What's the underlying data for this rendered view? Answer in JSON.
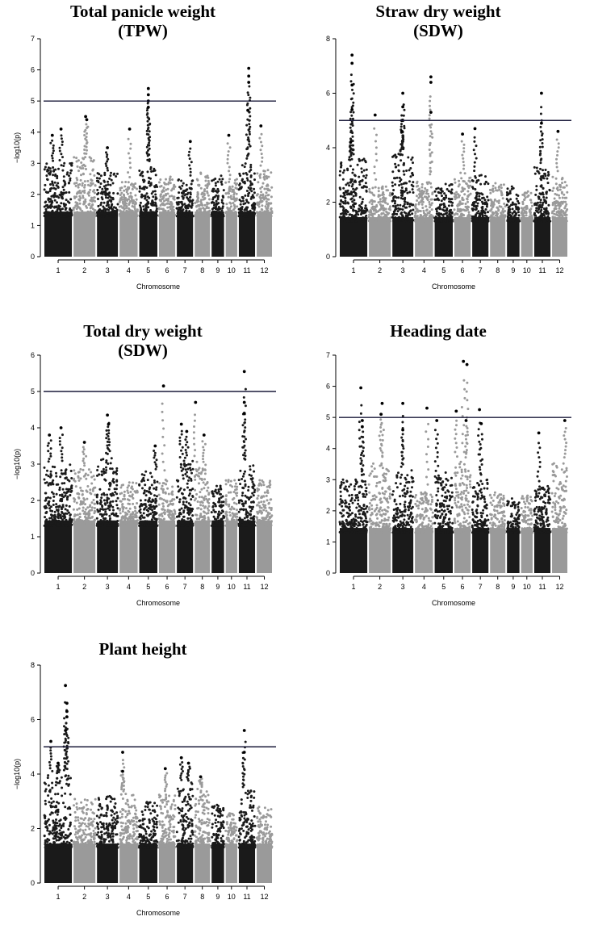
{
  "figure": {
    "chart_data": [
      {
        "type": "scatter",
        "subtype": "manhattan",
        "title_line1": "Total panicle weight",
        "title_line2": "(TPW)",
        "xlabel": "Chromosome",
        "ylabel": "−log10(p)",
        "ylim": [
          0,
          7
        ],
        "yticks": [
          0,
          1,
          2,
          3,
          4,
          5,
          6,
          7
        ],
        "threshold": 5,
        "chromosomes": [
          "1",
          "2",
          "3",
          "4",
          "5",
          "6",
          "7",
          "8",
          "9",
          "10",
          "11",
          "12"
        ],
        "base_levels": [
          3.0,
          3.2,
          2.7,
          2.4,
          2.9,
          2.6,
          2.5,
          2.7,
          2.6,
          2.5,
          3.0,
          2.8
        ],
        "peaks": [
          {
            "chr": "1",
            "pos": 0.6,
            "value": 4.1
          },
          {
            "chr": "1",
            "pos": 0.3,
            "value": 3.9
          },
          {
            "chr": "2",
            "pos": 0.55,
            "value": 4.5
          },
          {
            "chr": "2",
            "pos": 0.6,
            "value": 4.4
          },
          {
            "chr": "3",
            "pos": 0.5,
            "value": 3.5
          },
          {
            "chr": "4",
            "pos": 0.55,
            "value": 4.1
          },
          {
            "chr": "5",
            "pos": 0.5,
            "value": 5.4
          },
          {
            "chr": "5",
            "pos": 0.5,
            "value": 5.2
          },
          {
            "chr": "5",
            "pos": 0.5,
            "value": 5.0
          },
          {
            "chr": "5",
            "pos": 0.5,
            "value": 4.8
          },
          {
            "chr": "7",
            "pos": 0.8,
            "value": 3.7
          },
          {
            "chr": "10",
            "pos": 0.3,
            "value": 3.9
          },
          {
            "chr": "11",
            "pos": 0.6,
            "value": 6.05
          },
          {
            "chr": "11",
            "pos": 0.6,
            "value": 5.8
          },
          {
            "chr": "11",
            "pos": 0.6,
            "value": 5.6
          },
          {
            "chr": "11",
            "pos": 0.55,
            "value": 4.7
          },
          {
            "chr": "12",
            "pos": 0.3,
            "value": 4.2
          }
        ]
      },
      {
        "type": "scatter",
        "subtype": "manhattan",
        "title_line1": "Straw dry weight",
        "title_line2": "(SDW)",
        "xlabel": "Chromosome",
        "ylabel": "",
        "ylim": [
          0,
          8
        ],
        "yticks": [
          0,
          2,
          4,
          6,
          8
        ],
        "threshold": 5,
        "chromosomes": [
          "1",
          "2",
          "3",
          "4",
          "5",
          "6",
          "7",
          "8",
          "9",
          "10",
          "11",
          "12"
        ],
        "base_levels": [
          3.6,
          2.6,
          3.8,
          2.8,
          2.7,
          3.1,
          3.0,
          2.7,
          2.6,
          2.4,
          3.3,
          3.0
        ],
        "peaks": [
          {
            "chr": "1",
            "pos": 0.45,
            "value": 7.4
          },
          {
            "chr": "1",
            "pos": 0.45,
            "value": 7.1
          },
          {
            "chr": "1",
            "pos": 0.45,
            "value": 6.3
          },
          {
            "chr": "1",
            "pos": 0.45,
            "value": 5.4
          },
          {
            "chr": "1",
            "pos": 0.4,
            "value": 4.2
          },
          {
            "chr": "2",
            "pos": 0.3,
            "value": 5.2
          },
          {
            "chr": "3",
            "pos": 0.5,
            "value": 6.0
          },
          {
            "chr": "3",
            "pos": 0.5,
            "value": 5.5
          },
          {
            "chr": "3",
            "pos": 0.45,
            "value": 5.0
          },
          {
            "chr": "3",
            "pos": 0.45,
            "value": 4.6
          },
          {
            "chr": "4",
            "pos": 0.85,
            "value": 6.6
          },
          {
            "chr": "4",
            "pos": 0.85,
            "value": 6.4
          },
          {
            "chr": "4",
            "pos": 0.85,
            "value": 5.3
          },
          {
            "chr": "6",
            "pos": 0.5,
            "value": 4.5
          },
          {
            "chr": "7",
            "pos": 0.2,
            "value": 4.7
          },
          {
            "chr": "11",
            "pos": 0.45,
            "value": 6.0
          },
          {
            "chr": "11",
            "pos": 0.45,
            "value": 4.9
          },
          {
            "chr": "12",
            "pos": 0.4,
            "value": 4.6
          }
        ]
      },
      {
        "type": "scatter",
        "subtype": "manhattan",
        "title_line1": "Total dry weight",
        "title_line2": "(SDW)",
        "xlabel": "Chromosome",
        "ylabel": "−log10(p)",
        "ylim": [
          0,
          6
        ],
        "yticks": [
          0,
          1,
          2,
          3,
          4,
          5,
          6
        ],
        "threshold": 5,
        "chromosomes": [
          "1",
          "2",
          "3",
          "4",
          "5",
          "6",
          "7",
          "8",
          "9",
          "10",
          "11",
          "12"
        ],
        "base_levels": [
          3.0,
          2.9,
          3.2,
          2.5,
          2.8,
          2.6,
          3.1,
          2.9,
          2.4,
          2.6,
          3.0,
          2.6
        ],
        "peaks": [
          {
            "chr": "1",
            "pos": 0.2,
            "value": 3.8
          },
          {
            "chr": "1",
            "pos": 0.6,
            "value": 4.0
          },
          {
            "chr": "2",
            "pos": 0.5,
            "value": 3.6
          },
          {
            "chr": "3",
            "pos": 0.5,
            "value": 4.35
          },
          {
            "chr": "3",
            "pos": 0.55,
            "value": 4.1
          },
          {
            "chr": "5",
            "pos": 0.85,
            "value": 3.5
          },
          {
            "chr": "6",
            "pos": 0.3,
            "value": 5.15
          },
          {
            "chr": "7",
            "pos": 0.3,
            "value": 4.1
          },
          {
            "chr": "7",
            "pos": 0.6,
            "value": 3.9
          },
          {
            "chr": "8",
            "pos": 0.1,
            "value": 4.7
          },
          {
            "chr": "8",
            "pos": 0.6,
            "value": 3.8
          },
          {
            "chr": "11",
            "pos": 0.35,
            "value": 5.55
          },
          {
            "chr": "11",
            "pos": 0.35,
            "value": 4.7
          },
          {
            "chr": "11",
            "pos": 0.35,
            "value": 4.4
          }
        ]
      },
      {
        "type": "scatter",
        "subtype": "manhattan",
        "title_line1": "Heading date",
        "title_line2": "",
        "xlabel": "Chromosome",
        "ylabel": "",
        "ylim": [
          0,
          7
        ],
        "yticks": [
          0,
          1,
          2,
          3,
          4,
          5,
          6,
          7
        ],
        "threshold": 5,
        "chromosomes": [
          "1",
          "2",
          "3",
          "4",
          "5",
          "6",
          "7",
          "8",
          "9",
          "10",
          "11",
          "12"
        ],
        "base_levels": [
          3.0,
          3.6,
          3.3,
          2.6,
          3.3,
          3.6,
          3.0,
          2.6,
          2.4,
          2.5,
          2.8,
          3.6
        ],
        "peaks": [
          {
            "chr": "1",
            "pos": 0.75,
            "value": 5.95
          },
          {
            "chr": "1",
            "pos": 0.8,
            "value": 4.9
          },
          {
            "chr": "1",
            "pos": 0.8,
            "value": 4.7
          },
          {
            "chr": "2",
            "pos": 0.6,
            "value": 5.45
          },
          {
            "chr": "2",
            "pos": 0.55,
            "value": 5.1
          },
          {
            "chr": "3",
            "pos": 0.5,
            "value": 5.45
          },
          {
            "chr": "3",
            "pos": 0.5,
            "value": 4.6
          },
          {
            "chr": "4",
            "pos": 0.65,
            "value": 5.3
          },
          {
            "chr": "5",
            "pos": 0.15,
            "value": 4.9
          },
          {
            "chr": "6",
            "pos": 0.15,
            "value": 5.2
          },
          {
            "chr": "6",
            "pos": 0.55,
            "value": 6.8
          },
          {
            "chr": "6",
            "pos": 0.75,
            "value": 6.7
          },
          {
            "chr": "6",
            "pos": 0.7,
            "value": 4.9
          },
          {
            "chr": "7",
            "pos": 0.45,
            "value": 5.25
          },
          {
            "chr": "7",
            "pos": 0.55,
            "value": 4.8
          },
          {
            "chr": "11",
            "pos": 0.3,
            "value": 4.5
          },
          {
            "chr": "12",
            "pos": 0.8,
            "value": 4.9
          }
        ]
      },
      {
        "type": "scatter",
        "subtype": "manhattan",
        "title_line1": "Plant height",
        "title_line2": "",
        "xlabel": "Chromosome",
        "ylabel": "−log10(p)",
        "ylim": [
          0,
          8
        ],
        "yticks": [
          0,
          2,
          4,
          6,
          8
        ],
        "threshold": 5,
        "chromosomes": [
          "1",
          "2",
          "3",
          "4",
          "5",
          "6",
          "7",
          "8",
          "9",
          "10",
          "11",
          "12"
        ],
        "base_levels": [
          4.0,
          3.1,
          3.2,
          3.3,
          3.0,
          3.3,
          3.7,
          3.5,
          2.9,
          2.6,
          3.4,
          2.8
        ],
        "peaks": [
          {
            "chr": "1",
            "pos": 0.75,
            "value": 7.25
          },
          {
            "chr": "1",
            "pos": 0.8,
            "value": 6.6
          },
          {
            "chr": "1",
            "pos": 0.8,
            "value": 6.3
          },
          {
            "chr": "1",
            "pos": 0.8,
            "value": 6.1
          },
          {
            "chr": "1",
            "pos": 0.75,
            "value": 5.6
          },
          {
            "chr": "1",
            "pos": 0.25,
            "value": 5.2
          },
          {
            "chr": "1",
            "pos": 0.5,
            "value": 4.4
          },
          {
            "chr": "4",
            "pos": 0.2,
            "value": 4.8
          },
          {
            "chr": "4",
            "pos": 0.2,
            "value": 4.1
          },
          {
            "chr": "6",
            "pos": 0.4,
            "value": 4.2
          },
          {
            "chr": "7",
            "pos": 0.3,
            "value": 4.6
          },
          {
            "chr": "7",
            "pos": 0.7,
            "value": 4.4
          },
          {
            "chr": "8",
            "pos": 0.4,
            "value": 3.9
          },
          {
            "chr": "11",
            "pos": 0.35,
            "value": 5.6
          },
          {
            "chr": "11",
            "pos": 0.35,
            "value": 4.8
          }
        ]
      }
    ],
    "colors": {
      "dark_chromosome": "#1a1a1a",
      "light_chromosome": "#9a9a9a",
      "threshold_line": "#1a1a3a"
    }
  }
}
